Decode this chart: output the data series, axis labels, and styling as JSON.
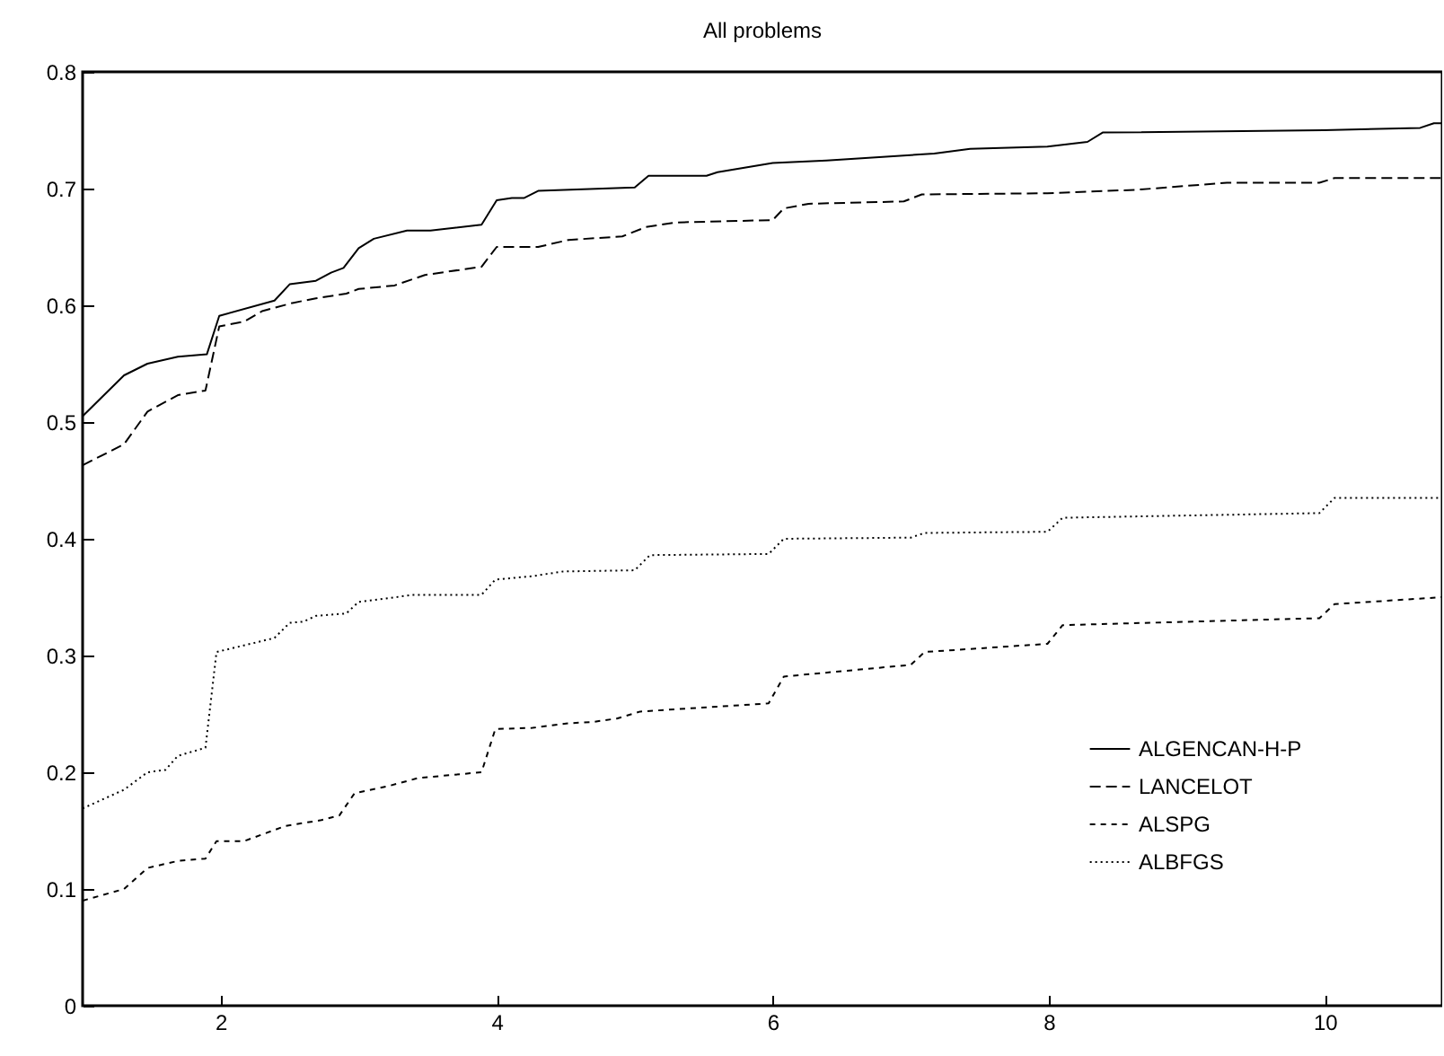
{
  "chart_data": {
    "type": "line",
    "title": "All problems",
    "xlim": [
      1,
      10.85
    ],
    "ylim": [
      0,
      0.8
    ],
    "xticks": [
      2,
      4,
      6,
      8,
      10
    ],
    "yticks": [
      0,
      0.1,
      0.2,
      0.3,
      0.4,
      0.5,
      0.6,
      0.7,
      0.8
    ],
    "legend": "right",
    "series": [
      {
        "name": "ALGENCAN-H-P",
        "color": "#000000",
        "line_style": "solid",
        "x": [
          1.0,
          1.3,
          1.47,
          1.69,
          1.9,
          1.99,
          2.39,
          2.5,
          2.69,
          2.8,
          2.89,
          3.0,
          3.11,
          3.35,
          3.52,
          3.89,
          4.0,
          4.11,
          4.2,
          4.3,
          5.0,
          5.1,
          5.52,
          5.6,
          6.0,
          6.39,
          7.17,
          7.43,
          7.99,
          8.28,
          8.39,
          9.99,
          10.69,
          10.79,
          10.85
        ],
        "values": [
          0.505,
          0.54,
          0.55,
          0.556,
          0.558,
          0.591,
          0.604,
          0.618,
          0.621,
          0.628,
          0.632,
          0.649,
          0.657,
          0.664,
          0.664,
          0.669,
          0.69,
          0.692,
          0.692,
          0.698,
          0.701,
          0.711,
          0.711,
          0.714,
          0.722,
          0.724,
          0.73,
          0.734,
          0.736,
          0.74,
          0.748,
          0.75,
          0.752,
          0.756,
          0.756
        ]
      },
      {
        "name": "LANCELOT",
        "color": "#000000",
        "line_style": "dashed",
        "x": [
          1.0,
          1.3,
          1.47,
          1.69,
          1.89,
          1.99,
          2.17,
          2.3,
          2.52,
          2.69,
          2.91,
          3.0,
          3.26,
          3.48,
          3.89,
          4.0,
          4.3,
          4.52,
          4.91,
          5.08,
          5.3,
          6.0,
          6.08,
          6.26,
          6.95,
          7.08,
          7.99,
          8.64,
          9.29,
          9.96,
          10.07,
          10.85
        ],
        "values": [
          0.463,
          0.481,
          0.509,
          0.523,
          0.527,
          0.582,
          0.586,
          0.595,
          0.602,
          0.606,
          0.61,
          0.614,
          0.617,
          0.626,
          0.633,
          0.65,
          0.65,
          0.656,
          0.659,
          0.667,
          0.671,
          0.673,
          0.683,
          0.687,
          0.689,
          0.695,
          0.696,
          0.699,
          0.705,
          0.705,
          0.709,
          0.709
        ]
      },
      {
        "name": "ALSPG",
        "color": "#000000",
        "line_style": "dashed",
        "x": [
          1.0,
          1.3,
          1.47,
          1.69,
          1.89,
          1.97,
          2.17,
          2.47,
          2.73,
          2.86,
          2.97,
          3.21,
          3.43,
          3.89,
          3.99,
          4.26,
          4.52,
          4.69,
          4.87,
          5.04,
          5.97,
          6.08,
          7.0,
          7.1,
          7.99,
          8.1,
          9.96,
          10.07,
          10.85
        ],
        "values": [
          0.09,
          0.1,
          0.118,
          0.124,
          0.126,
          0.141,
          0.141,
          0.154,
          0.159,
          0.163,
          0.182,
          0.188,
          0.195,
          0.2,
          0.237,
          0.238,
          0.242,
          0.243,
          0.246,
          0.252,
          0.259,
          0.282,
          0.292,
          0.303,
          0.31,
          0.326,
          0.332,
          0.344,
          0.35
        ]
      },
      {
        "name": "ALBFGS",
        "color": "#000000",
        "line_style": "dotted",
        "x": [
          1.0,
          1.3,
          1.47,
          1.6,
          1.69,
          1.89,
          1.97,
          2.39,
          2.5,
          2.6,
          2.69,
          2.91,
          3.0,
          3.21,
          3.39,
          3.89,
          3.99,
          4.26,
          4.48,
          5.0,
          5.11,
          5.97,
          6.08,
          7.0,
          7.1,
          7.99,
          8.1,
          9.96,
          10.07,
          10.85
        ],
        "values": [
          0.169,
          0.185,
          0.2,
          0.202,
          0.214,
          0.221,
          0.303,
          0.315,
          0.328,
          0.329,
          0.334,
          0.336,
          0.346,
          0.349,
          0.352,
          0.352,
          0.365,
          0.368,
          0.372,
          0.373,
          0.386,
          0.387,
          0.4,
          0.401,
          0.405,
          0.406,
          0.418,
          0.422,
          0.435,
          0.435
        ]
      }
    ]
  }
}
